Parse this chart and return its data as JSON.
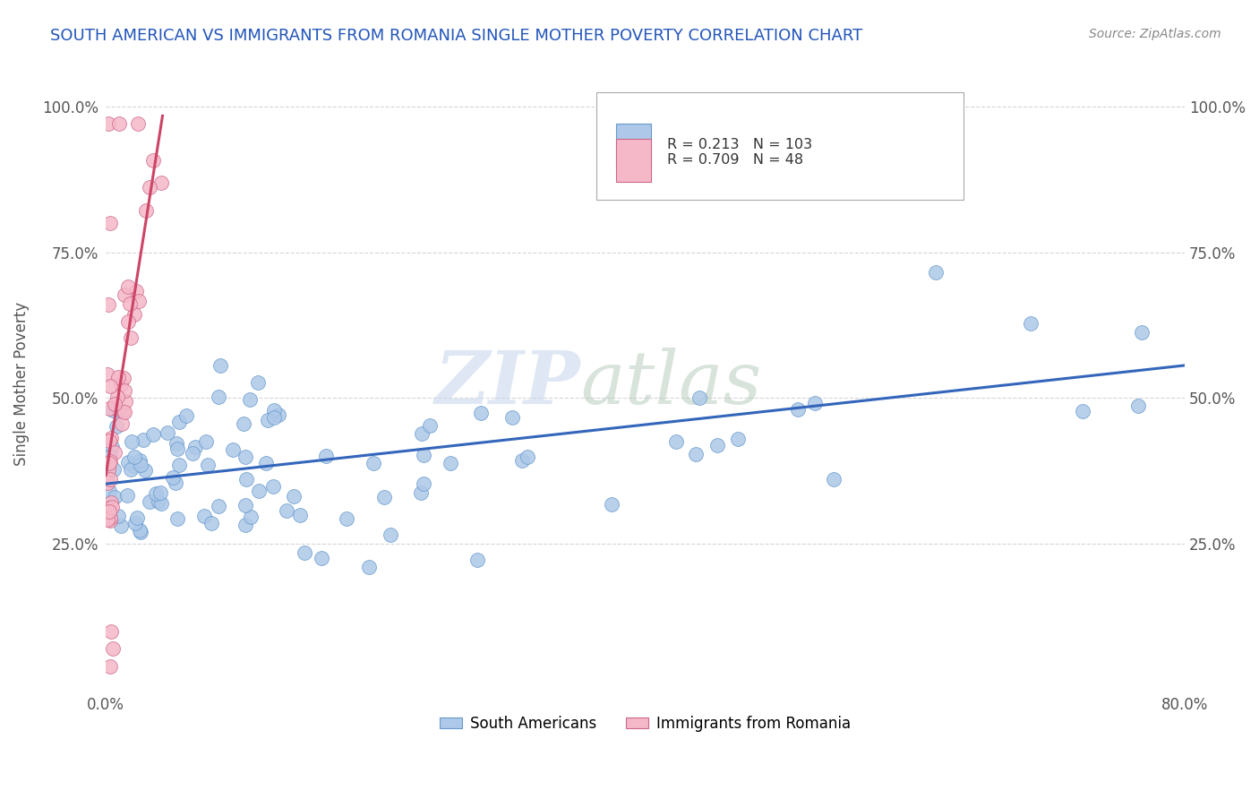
{
  "title": "SOUTH AMERICAN VS IMMIGRANTS FROM ROMANIA SINGLE MOTHER POVERTY CORRELATION CHART",
  "source": "Source: ZipAtlas.com",
  "ylabel": "Single Mother Poverty",
  "xlim": [
    0.0,
    0.8
  ],
  "ylim": [
    0.0,
    1.05
  ],
  "xtick_positions": [
    0.0,
    0.8
  ],
  "xticklabels": [
    "0.0%",
    "80.0%"
  ],
  "ytick_positions": [
    0.25,
    0.5,
    0.75,
    1.0
  ],
  "ytick_labels": [
    "25.0%",
    "50.0%",
    "75.0%",
    "100.0%"
  ],
  "blue_R": 0.213,
  "blue_N": 103,
  "pink_R": 0.709,
  "pink_N": 48,
  "blue_color": "#adc8e8",
  "pink_color": "#f5b8c8",
  "blue_edge_color": "#6699cc",
  "pink_edge_color": "#cc6688",
  "blue_line_color": "#3366bb",
  "pink_line_color": "#cc4466",
  "watermark_zip": "ZIP",
  "watermark_atlas": "atlas",
  "title_color": "#2255bb",
  "source_color": "#888888",
  "ylabel_color": "#555555",
  "tick_color": "#555555",
  "legend_blue_label": "South Americans",
  "legend_pink_label": "Immigrants from Romania",
  "background_color": "#ffffff",
  "grid_color": "#cccccc",
  "blue_line_start_y": 0.355,
  "blue_line_end_y": 0.46,
  "pink_line_start_y": 0.355,
  "pink_line_end_x": 0.042
}
